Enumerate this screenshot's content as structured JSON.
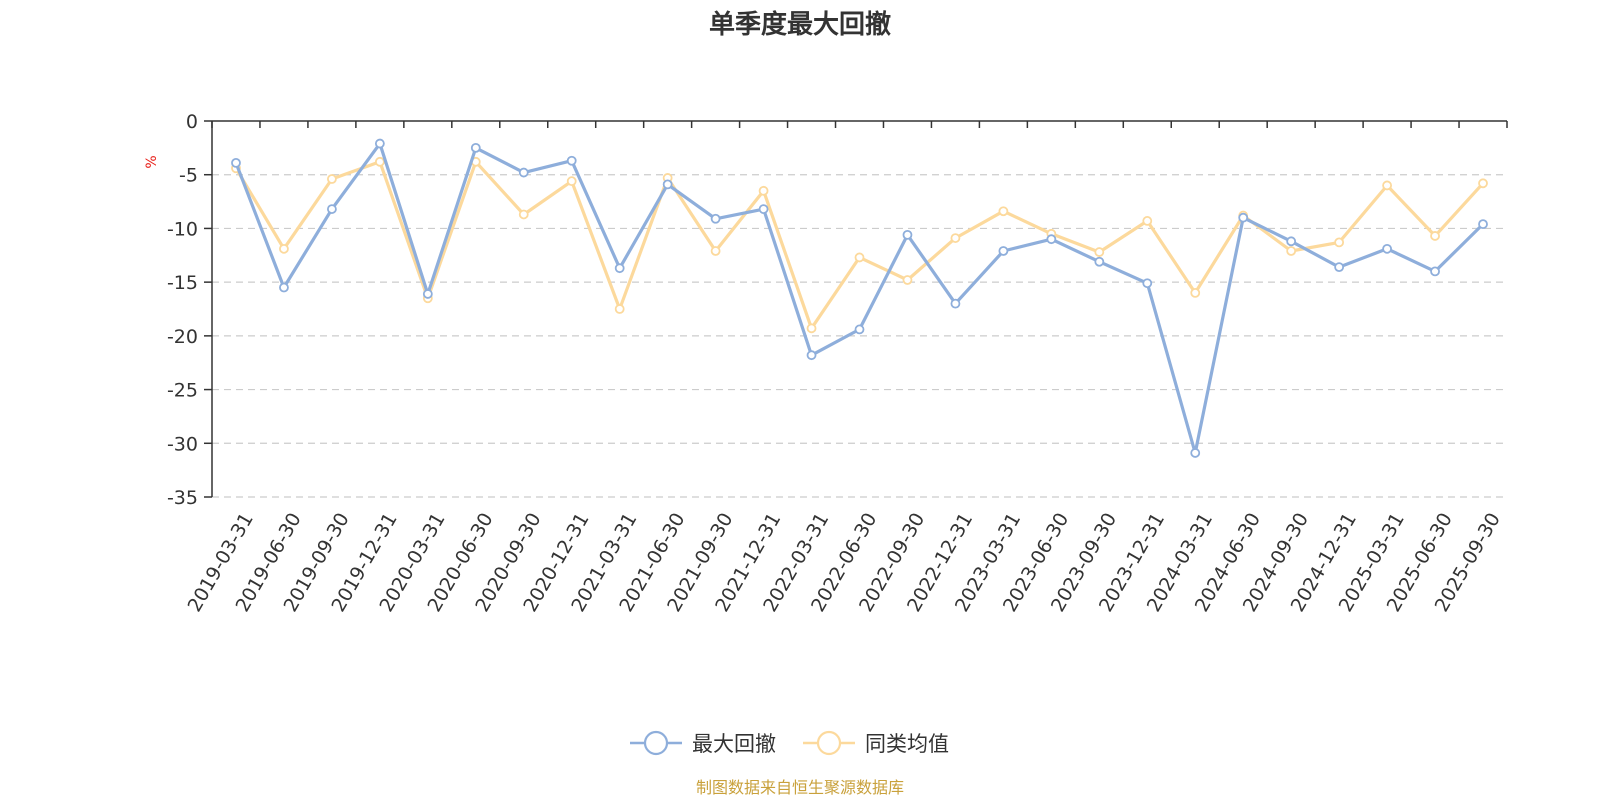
{
  "chart_data": {
    "type": "line",
    "title": "单季度最大回撤",
    "ylabel": "%",
    "ylim": [
      -35,
      0
    ],
    "yticks": [
      0,
      -5,
      -10,
      -15,
      -20,
      -25,
      -30,
      -35
    ],
    "grid": true,
    "legend_position": "bottom-center",
    "categories": [
      "2019-03-31",
      "2019-06-30",
      "2019-09-30",
      "2019-12-31",
      "2020-03-31",
      "2020-06-30",
      "2020-09-30",
      "2020-12-31",
      "2021-03-31",
      "2021-06-30",
      "2021-09-30",
      "2021-12-31",
      "2022-03-31",
      "2022-06-30",
      "2022-09-30",
      "2022-12-31",
      "2023-03-31",
      "2023-06-30",
      "2023-09-30",
      "2023-12-31",
      "2024-03-31",
      "2024-06-30",
      "2024-09-30",
      "2024-12-31",
      "2025-03-31",
      "2025-06-30",
      "2025-09-30"
    ],
    "series": [
      {
        "name": "最大回撤",
        "color": "#8eaedb",
        "values": [
          -3.9,
          -15.5,
          -8.2,
          -2.1,
          -16.1,
          -2.5,
          -4.8,
          -3.7,
          -13.7,
          -5.9,
          -9.1,
          -8.2,
          -21.8,
          -19.4,
          -10.6,
          -17.0,
          -12.1,
          -11.0,
          -13.1,
          -15.1,
          -30.9,
          -9.0,
          -11.2,
          -13.6,
          -11.9,
          -14.0,
          -9.6
        ]
      },
      {
        "name": "同类均值",
        "color": "#fcd99c",
        "values": [
          -4.4,
          -11.9,
          -5.4,
          -3.8,
          -16.5,
          -3.8,
          -8.7,
          -5.6,
          -17.5,
          -5.3,
          -12.1,
          -6.5,
          -19.3,
          -12.7,
          -14.8,
          -10.9,
          -8.4,
          -10.5,
          -12.2,
          -9.3,
          -16.0,
          -8.8,
          -12.1,
          -11.3,
          -6.0,
          -10.7,
          -5.8
        ]
      }
    ],
    "source": "制图数据来自恒生聚源数据库",
    "colors": {
      "title": "#333333",
      "axis": "#333333",
      "grid": "#cccccc",
      "unit": "#e8201a",
      "source": "#c9a13b"
    }
  }
}
